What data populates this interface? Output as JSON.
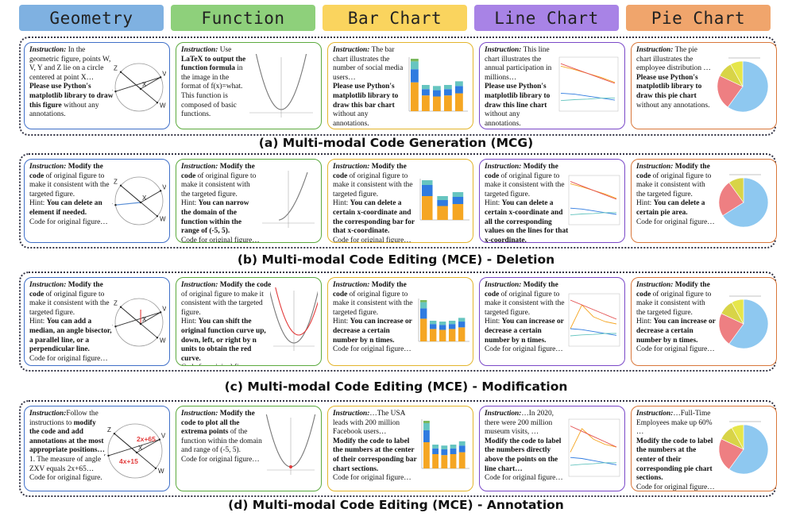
{
  "headers": [
    "Geometry",
    "Function",
    "Bar Chart",
    "Line Chart",
    "Pie Chart"
  ],
  "header_colors": [
    "#7fb1e1",
    "#8ed07b",
    "#fad45e",
    "#a883e6",
    "#f0a56c"
  ],
  "captions": {
    "a": "(a) Multi-modal Code Generation (MCG)",
    "b": "(b) Multi-modal Code Editing (MCE) - Deletion",
    "c": "(c) Multi-modal Code Editing (MCE) - Modification",
    "d": "(d) Multi-modal Code Editing (MCE) - Annotation"
  },
  "common": {
    "instruction": "Instruction:",
    "modify_pre": "Modify the",
    "modify_code": "code",
    "modify_rest": "of original figure to make it consistent with the targeted figure.",
    "hint": "Hint:",
    "code_for": "Code for original figure…"
  },
  "rows": {
    "a": {
      "geo": {
        "t1": "In the geometric figure, points W, V, Y and Z lie on a circle centered at point X…",
        "t2": "Please use Python's matplotlib library to draw this figure",
        "t3": "without any annotations."
      },
      "fun": {
        "t0": "Use",
        "t1": "LaTeX to output the function formula",
        "t2": "in the image in the format of f(x)=what. This function is composed of basic functions."
      },
      "bar": {
        "t1": "The bar chart illustrates the number of social media users…",
        "t2": "Please use Python's matplotlib library to draw this bar chart",
        "t3": "without any annotations."
      },
      "line": {
        "t1": "This line chart illustrates the annual participation in millions…",
        "t2": "Please use Python's matplotlib library to draw this line chart",
        "t3": "without any annotations."
      },
      "pie": {
        "t1": "The pie chart illustrates the employee distribution …",
        "t2": "Please use Python's matplotlib library to draw this pie chart",
        "t3": "without any annotations."
      }
    },
    "b": {
      "geo": {
        "hint": "You can delete an element if needed."
      },
      "fun": {
        "hint": "You can narrow the domain of the function within the range of (-5, 5)."
      },
      "bar": {
        "hint": "You can delete a certain x-coordinate and the corresponding bar for that x-coordinate."
      },
      "line": {
        "hint": "You can delete a certain x-coordinate and all the corresponding values on the lines for that x-coordinate."
      },
      "pie": {
        "hint": "You can delete a certain pie area."
      }
    },
    "c": {
      "geo": {
        "hint": "You can add a median, an angle bisector, a parallel line, or a perpendicular line."
      },
      "fun": {
        "hint": "You can shift the original function curve up, down, left, or right by n units to obtain the red curve."
      },
      "bar": {
        "hint": "You can increase or decrease a certain number by n times."
      },
      "line": {
        "hint": "You can increase or decrease a certain number by n times."
      },
      "pie": {
        "hint": "You can increase or decrease a certain number by n times."
      }
    },
    "d": {
      "geo": {
        "t1": "Follow the instructions to",
        "t2": "modify the code and add annotations at the most appropriate positions…",
        "t3": "1. The measure of angle ZXV equals 2x+65…",
        "t4": "Code for original figure.",
        "label1": "2x+65",
        "label2": "4x+15"
      },
      "fun": {
        "t1": "Modify the code to plot all the extrema points",
        "t2": "of the function within the domain and range of (-5, 5).",
        "t3": "Code for original figure…"
      },
      "bar": {
        "t1": "…The USA leads with 200 million Facebook users…",
        "t2": "Modify the code to label the numbers at the center of their corresponding bar chart sections.",
        "t3": "Code for original figure…"
      },
      "line": {
        "t1": "…In 2020, there were 200 million museum visits, …",
        "t2": "Modify the code to label the numbers directly above the points on the line chart…",
        "t3": "Code for original figure…"
      },
      "pie": {
        "t1": "…Full-Time Employees make up 60% …",
        "t2": "Modify the code to label the numbers at the center of their corresponding pie chart sections.",
        "t3": "Code for original figure…"
      }
    }
  },
  "geo_points": [
    "Z",
    "X",
    "Y",
    "V",
    "W"
  ]
}
